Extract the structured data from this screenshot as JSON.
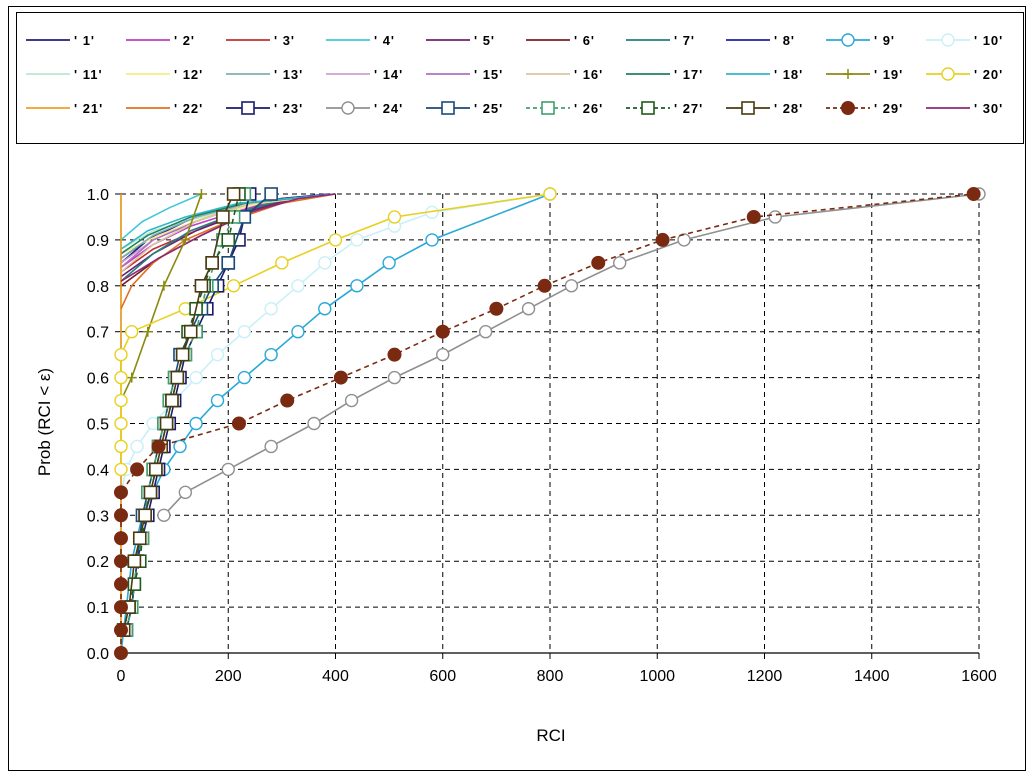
{
  "chart_data": {
    "type": "line",
    "title": "",
    "xlabel": "RCI",
    "ylabel": "Prob (RCI < ε)",
    "xlim": [
      0,
      1600
    ],
    "ylim": [
      0,
      1.0
    ],
    "xticks": [
      "0",
      "200",
      "400",
      "600",
      "800",
      "1000",
      "1200",
      "1400",
      "1600"
    ],
    "yticks": [
      "0.0",
      "0.1",
      "0.2",
      "0.3",
      "0.4",
      "0.5",
      "0.6",
      "0.7",
      "0.8",
      "0.9",
      "1.0"
    ],
    "grid": true,
    "legend_position": "top",
    "series": [
      {
        "name": "' 1'",
        "color": "#1F1F7A",
        "dash": "solid",
        "marker": "none",
        "x": [
          0,
          50,
          120,
          200,
          300,
          400
        ],
        "y": [
          0.85,
          0.9,
          0.94,
          0.97,
          0.99,
          1.0
        ]
      },
      {
        "name": "' 2'",
        "color": "#C040C0",
        "dash": "solid",
        "marker": "none",
        "x": [
          0,
          60,
          130,
          210,
          300,
          390
        ],
        "y": [
          0.84,
          0.89,
          0.93,
          0.96,
          0.99,
          1.0
        ]
      },
      {
        "name": "' 3'",
        "color": "#C03030",
        "dash": "solid",
        "marker": "none",
        "x": [
          0,
          60,
          140,
          220,
          310,
          400
        ],
        "y": [
          0.83,
          0.88,
          0.92,
          0.96,
          0.99,
          1.0
        ]
      },
      {
        "name": "' 4'",
        "color": "#40C8D8",
        "dash": "solid",
        "marker": "none",
        "x": [
          0,
          40,
          90,
          150
        ],
        "y": [
          0.9,
          0.94,
          0.97,
          1.0
        ]
      },
      {
        "name": "' 5'",
        "color": "#702070",
        "dash": "solid",
        "marker": "none",
        "x": [
          0,
          60,
          140,
          230,
          320,
          390
        ],
        "y": [
          0.82,
          0.87,
          0.92,
          0.96,
          0.99,
          1.0
        ]
      },
      {
        "name": "' 6'",
        "color": "#7A2020",
        "dash": "solid",
        "marker": "none",
        "x": [
          0,
          70,
          150,
          240,
          330,
          400
        ],
        "y": [
          0.8,
          0.86,
          0.91,
          0.96,
          0.99,
          1.0
        ]
      },
      {
        "name": "' 7'",
        "color": "#208080",
        "dash": "solid",
        "marker": "none",
        "x": [
          0,
          60,
          130,
          220,
          310,
          400
        ],
        "y": [
          0.81,
          0.87,
          0.92,
          0.96,
          0.99,
          1.0
        ]
      },
      {
        "name": "' 8'",
        "color": "#2020A0",
        "dash": "solid",
        "marker": "none",
        "x": [
          0,
          50,
          120,
          200,
          300,
          390
        ],
        "y": [
          0.86,
          0.9,
          0.94,
          0.97,
          0.99,
          1.0
        ]
      },
      {
        "name": "' 9'",
        "color": "#2AA8D8",
        "dash": "solid",
        "marker": "circle",
        "x": [
          0,
          10,
          20,
          40,
          60,
          80,
          110,
          140,
          180,
          230,
          280,
          330,
          380,
          440,
          500,
          580,
          800
        ],
        "y": [
          0.0,
          0.1,
          0.2,
          0.3,
          0.35,
          0.4,
          0.45,
          0.5,
          0.55,
          0.6,
          0.65,
          0.7,
          0.75,
          0.8,
          0.85,
          0.9,
          1.0
        ]
      },
      {
        "name": "' 10'",
        "color": "#C8F0F8",
        "dash": "solid",
        "marker": "circle",
        "x": [
          0,
          10,
          30,
          60,
          100,
          140,
          180,
          230,
          280,
          330,
          380,
          440,
          510,
          580,
          800
        ],
        "y": [
          0.35,
          0.4,
          0.45,
          0.5,
          0.55,
          0.6,
          0.65,
          0.7,
          0.75,
          0.8,
          0.85,
          0.9,
          0.93,
          0.96,
          1.0
        ]
      },
      {
        "name": "' 11'",
        "color": "#B8E8D0",
        "dash": "solid",
        "marker": "none",
        "x": [
          0,
          60,
          150,
          250,
          400
        ],
        "y": [
          0.88,
          0.92,
          0.95,
          0.98,
          1.0
        ]
      },
      {
        "name": "' 12'",
        "color": "#F0F080",
        "dash": "solid",
        "marker": "none",
        "x": [
          0,
          70,
          160,
          260,
          400
        ],
        "y": [
          0.87,
          0.91,
          0.95,
          0.98,
          1.0
        ]
      },
      {
        "name": "' 13'",
        "color": "#80B0B0",
        "dash": "solid",
        "marker": "none",
        "x": [
          0,
          60,
          140,
          240,
          400
        ],
        "y": [
          0.86,
          0.91,
          0.95,
          0.98,
          1.0
        ]
      },
      {
        "name": "' 14'",
        "color": "#D0A0D0",
        "dash": "solid",
        "marker": "none",
        "x": [
          0,
          60,
          140,
          240,
          400
        ],
        "y": [
          0.85,
          0.9,
          0.94,
          0.98,
          1.0
        ]
      },
      {
        "name": "' 15'",
        "color": "#B070C0",
        "dash": "solid",
        "marker": "none",
        "x": [
          0,
          60,
          140,
          240,
          400
        ],
        "y": [
          0.84,
          0.9,
          0.94,
          0.98,
          1.0
        ]
      },
      {
        "name": "' 16'",
        "color": "#D8C8A0",
        "dash": "solid",
        "marker": "none",
        "x": [
          0,
          60,
          140,
          240,
          400
        ],
        "y": [
          0.83,
          0.89,
          0.94,
          0.98,
          1.0
        ]
      },
      {
        "name": "' 17'",
        "color": "#208060",
        "dash": "solid",
        "marker": "none",
        "x": [
          0,
          50,
          130,
          230,
          400
        ],
        "y": [
          0.87,
          0.91,
          0.95,
          0.98,
          1.0
        ]
      },
      {
        "name": "' 18'",
        "color": "#30B8C8",
        "dash": "solid",
        "marker": "none",
        "x": [
          0,
          50,
          120,
          220,
          400
        ],
        "y": [
          0.88,
          0.92,
          0.95,
          0.98,
          1.0
        ]
      },
      {
        "name": "' 19'",
        "color": "#8A8A10",
        "dash": "solid",
        "marker": "plus",
        "x": [
          0,
          20,
          50,
          80,
          120,
          150
        ],
        "y": [
          0.55,
          0.6,
          0.7,
          0.8,
          0.9,
          1.0
        ]
      },
      {
        "name": "' 20'",
        "color": "#E8D020",
        "dash": "solid",
        "marker": "circle",
        "x": [
          0,
          0,
          0,
          0,
          0,
          0,
          20,
          120,
          210,
          300,
          400,
          510,
          800
        ],
        "y": [
          0.4,
          0.45,
          0.5,
          0.55,
          0.6,
          0.65,
          0.7,
          0.75,
          0.8,
          0.85,
          0.9,
          0.95,
          1.0
        ]
      },
      {
        "name": "' 21'",
        "color": "#F0A020",
        "dash": "solid",
        "marker": "none",
        "x": [
          0,
          0,
          0
        ],
        "y": [
          0.0,
          0.5,
          1.0
        ]
      },
      {
        "name": "' 22'",
        "color": "#E07020",
        "dash": "solid",
        "marker": "none",
        "x": [
          0,
          20,
          60,
          120,
          200,
          300,
          400
        ],
        "y": [
          0.75,
          0.8,
          0.85,
          0.9,
          0.94,
          0.98,
          1.0
        ]
      },
      {
        "name": "' 23'",
        "color": "#1A1A6A",
        "dash": "solid",
        "marker": "square",
        "x": [
          10,
          20,
          30,
          40,
          50,
          60,
          70,
          80,
          90,
          100,
          110,
          120,
          140,
          160,
          180,
          200,
          220,
          240
        ],
        "y": [
          0.05,
          0.1,
          0.2,
          0.25,
          0.3,
          0.35,
          0.4,
          0.45,
          0.5,
          0.55,
          0.6,
          0.65,
          0.7,
          0.75,
          0.8,
          0.85,
          0.9,
          1.0
        ]
      },
      {
        "name": "' 24'",
        "color": "#909090",
        "dash": "solid",
        "marker": "circle",
        "x": [
          80,
          120,
          200,
          280,
          360,
          430,
          510,
          600,
          680,
          760,
          840,
          930,
          1050,
          1220,
          1600
        ],
        "y": [
          0.3,
          0.35,
          0.4,
          0.45,
          0.5,
          0.55,
          0.6,
          0.65,
          0.7,
          0.75,
          0.8,
          0.85,
          0.9,
          0.95,
          1.0
        ]
      },
      {
        "name": "' 25'",
        "color": "#1A4A7A",
        "dash": "solid",
        "marker": "square",
        "x": [
          10,
          20,
          30,
          40,
          50,
          60,
          70,
          80,
          90,
          100,
          110,
          130,
          150,
          170,
          200,
          230,
          280
        ],
        "y": [
          0.05,
          0.1,
          0.2,
          0.3,
          0.35,
          0.4,
          0.45,
          0.5,
          0.55,
          0.6,
          0.65,
          0.7,
          0.75,
          0.8,
          0.85,
          0.95,
          1.0
        ]
      },
      {
        "name": "' 26'",
        "color": "#40A070",
        "dash": "dashed",
        "marker": "square",
        "x": [
          10,
          20,
          30,
          40,
          50,
          60,
          70,
          80,
          90,
          100,
          120,
          140,
          160,
          190,
          210,
          230
        ],
        "y": [
          0.05,
          0.1,
          0.2,
          0.25,
          0.35,
          0.4,
          0.45,
          0.5,
          0.55,
          0.6,
          0.65,
          0.7,
          0.8,
          0.9,
          0.95,
          1.0
        ]
      },
      {
        "name": "' 27'",
        "color": "#1E5A1E",
        "dash": "dashed",
        "marker": "square",
        "x": [
          5,
          15,
          25,
          35,
          45,
          55,
          65,
          75,
          85,
          95,
          105,
          115,
          125,
          140,
          155,
          170,
          200,
          220
        ],
        "y": [
          0.05,
          0.1,
          0.15,
          0.2,
          0.3,
          0.35,
          0.4,
          0.45,
          0.5,
          0.55,
          0.6,
          0.65,
          0.7,
          0.75,
          0.8,
          0.85,
          0.9,
          1.0
        ]
      },
      {
        "name": "' 28'",
        "color": "#4A3A10",
        "dash": "solid",
        "marker": "square",
        "x": [
          5,
          15,
          25,
          35,
          45,
          55,
          65,
          75,
          85,
          95,
          105,
          115,
          130,
          150,
          170,
          190,
          210
        ],
        "y": [
          0.05,
          0.1,
          0.2,
          0.25,
          0.3,
          0.35,
          0.4,
          0.45,
          0.5,
          0.55,
          0.6,
          0.65,
          0.7,
          0.8,
          0.85,
          0.95,
          1.0
        ]
      },
      {
        "name": "' 29'",
        "color": "#7A2A10",
        "dash": "dashed",
        "marker": "dot",
        "x": [
          0,
          0,
          0,
          0,
          0,
          0,
          0,
          0,
          30,
          70,
          220,
          310,
          410,
          510,
          600,
          700,
          790,
          890,
          1010,
          1180,
          1590
        ],
        "y": [
          0.0,
          0.05,
          0.1,
          0.15,
          0.2,
          0.25,
          0.3,
          0.35,
          0.4,
          0.45,
          0.5,
          0.55,
          0.6,
          0.65,
          0.7,
          0.75,
          0.8,
          0.85,
          0.9,
          0.95,
          1.0
        ]
      },
      {
        "name": "' 30'",
        "color": "#8A2A7A",
        "dash": "solid",
        "marker": "none",
        "x": [
          0,
          70,
          150,
          240,
          330,
          400
        ],
        "y": [
          0.81,
          0.86,
          0.91,
          0.96,
          0.99,
          1.0
        ]
      }
    ]
  }
}
